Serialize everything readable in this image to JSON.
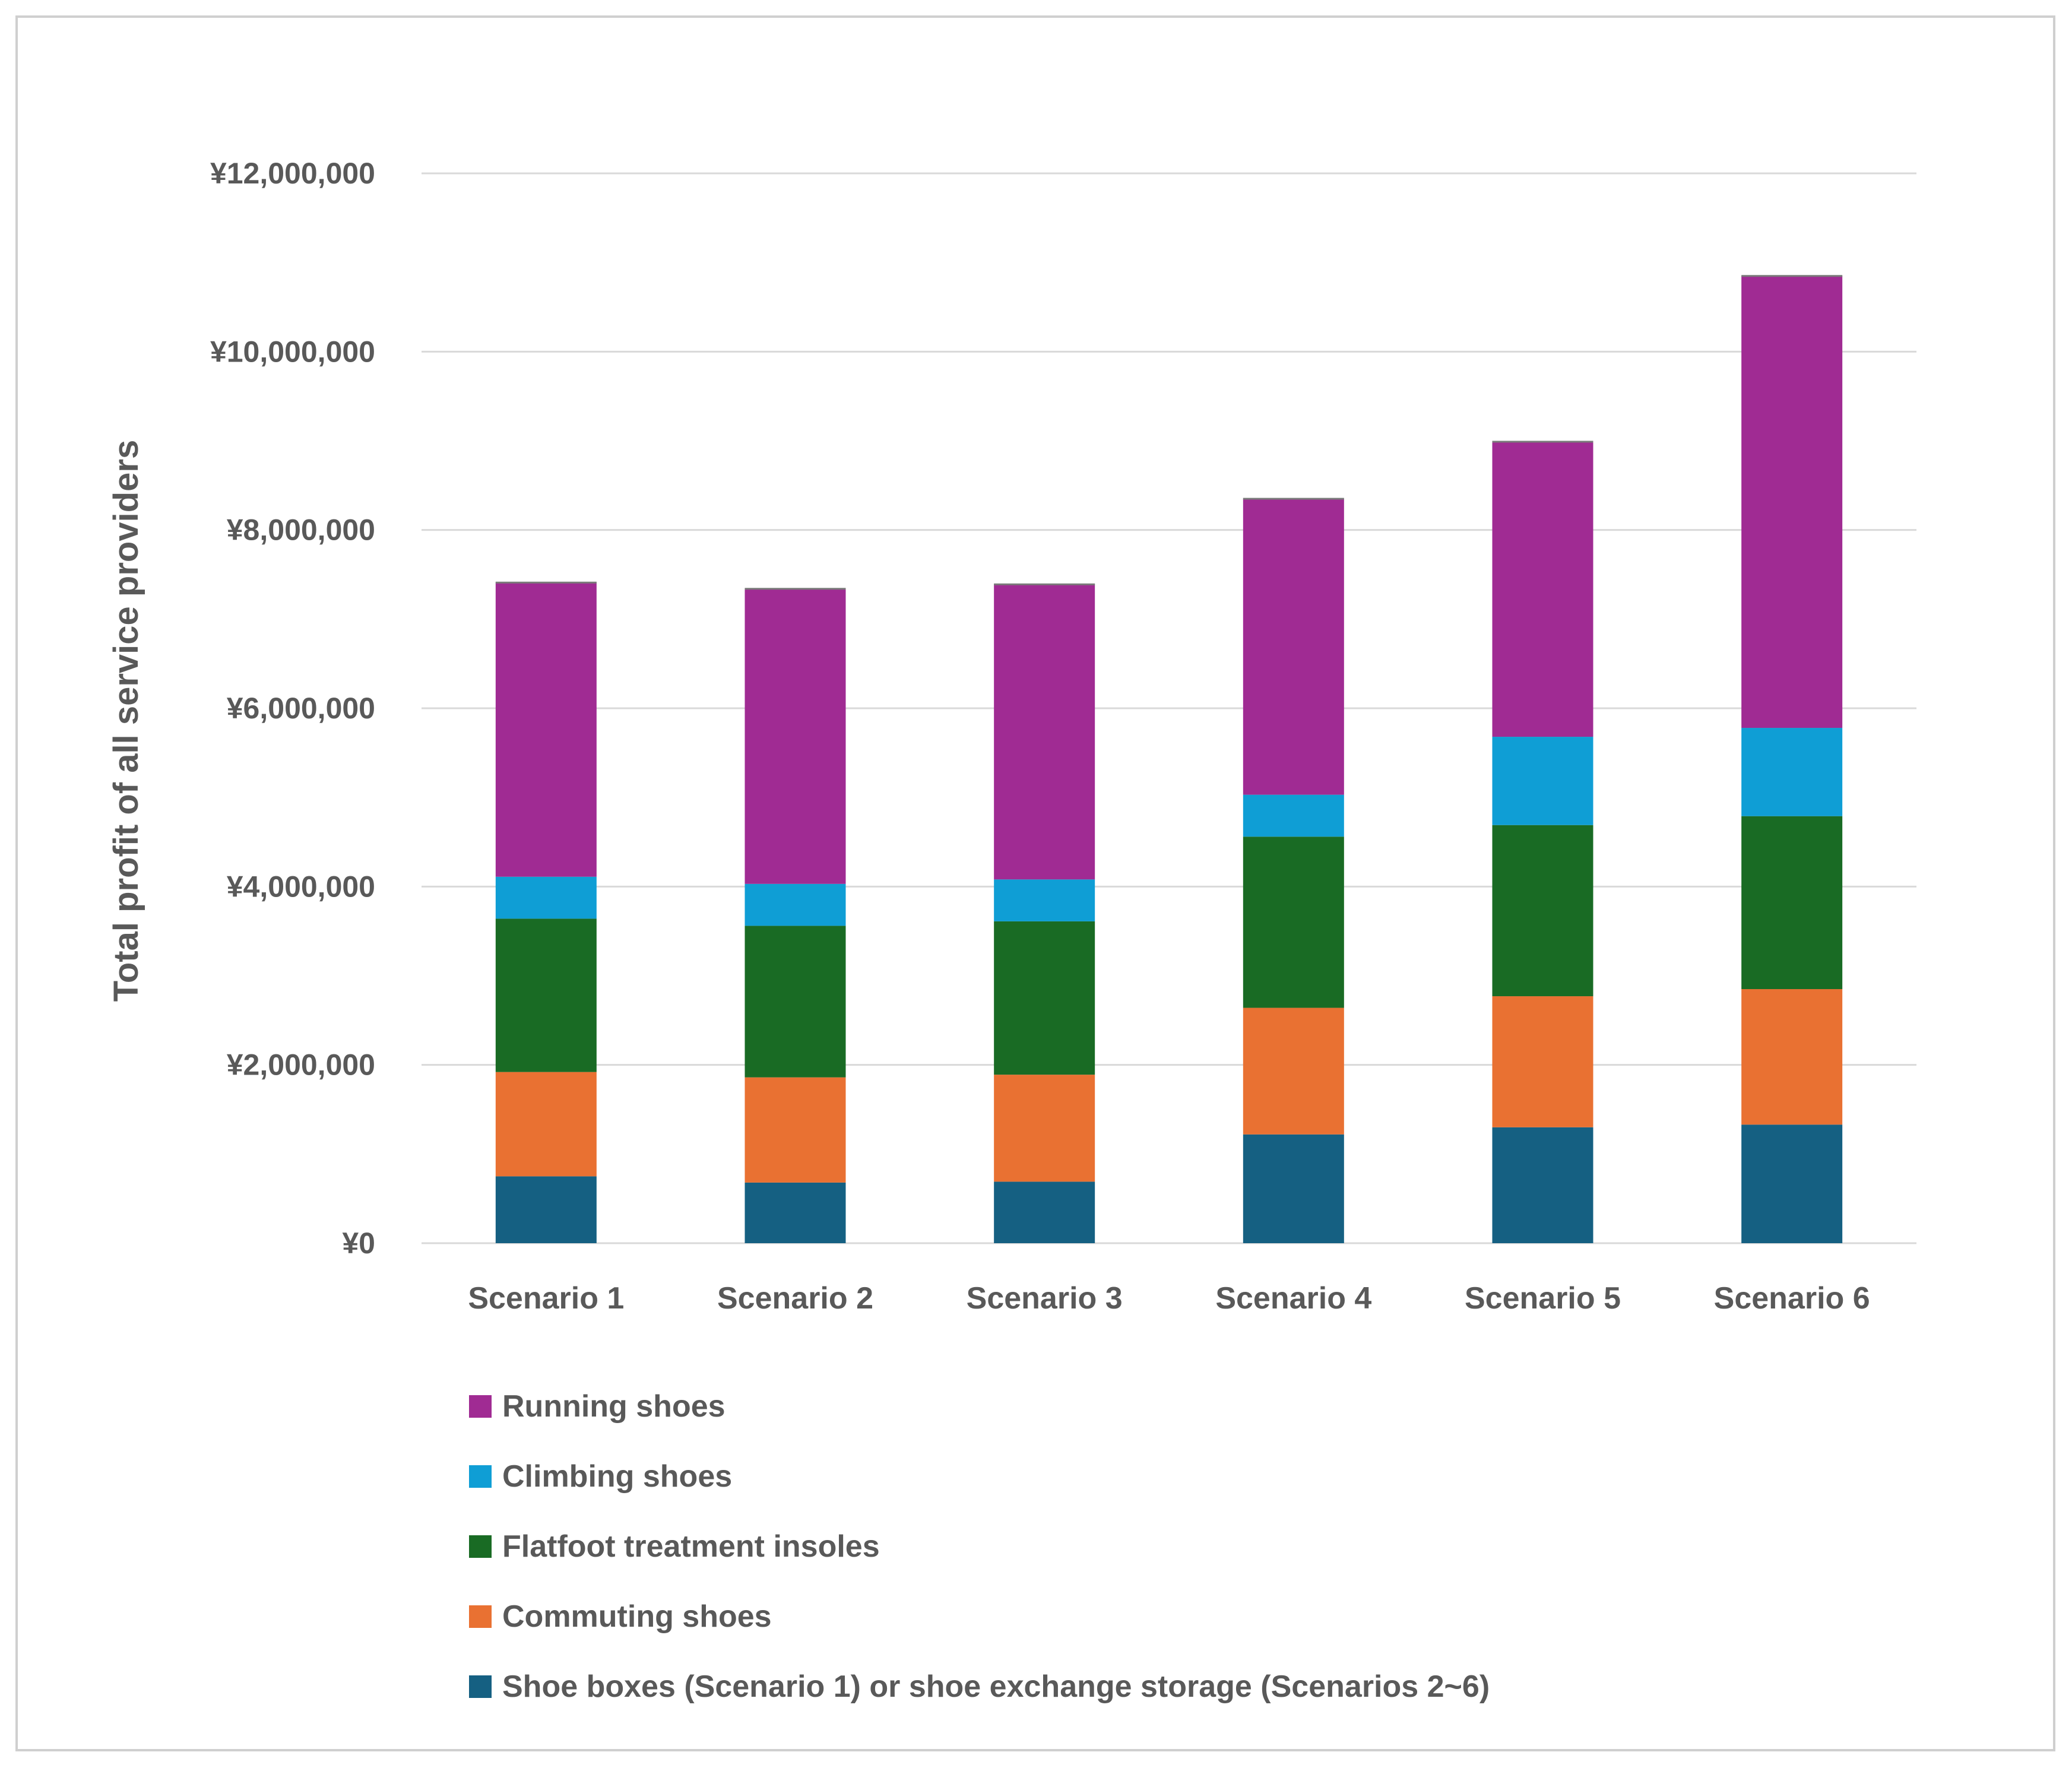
{
  "chart_data": {
    "type": "bar",
    "stacked": true,
    "title": "",
    "xlabel": "",
    "ylabel": "Total  profit of all service providers",
    "ylim": [
      0,
      12000000
    ],
    "yticks": [
      0,
      2000000,
      4000000,
      6000000,
      8000000,
      10000000,
      12000000
    ],
    "ytick_labels": [
      "¥0",
      "¥2,000,000",
      "¥4,000,000",
      "¥6,000,000",
      "¥8,000,000",
      "¥10,000,000",
      "¥12,000,000"
    ],
    "grid": true,
    "legend_position": "bottom",
    "categories": [
      "Scenario 1",
      "Scenario 2",
      "Scenario 3",
      "Scenario 4",
      "Scenario 5",
      "Scenario 6"
    ],
    "series": [
      {
        "name": "Shoe boxes (Scenario 1) or shoe exchange storage (Scenarios 2~6)",
        "color": "#156082",
        "values": [
          750000,
          680000,
          690000,
          1220000,
          1300000,
          1330000
        ]
      },
      {
        "name": "Commuting shoes",
        "color": "#E97132",
        "values": [
          1170000,
          1180000,
          1200000,
          1420000,
          1470000,
          1520000
        ]
      },
      {
        "name": "Flatfoot treatment insoles",
        "color": "#196B24",
        "values": [
          1720000,
          1700000,
          1720000,
          1920000,
          1920000,
          1940000
        ]
      },
      {
        "name": "Climbing shoes",
        "color": "#0F9ED5",
        "values": [
          470000,
          470000,
          470000,
          470000,
          990000,
          990000
        ]
      },
      {
        "name": "Running shoes",
        "color": "#A02B93",
        "values": [
          3300000,
          3310000,
          3310000,
          3320000,
          3310000,
          5070000
        ]
      }
    ]
  }
}
